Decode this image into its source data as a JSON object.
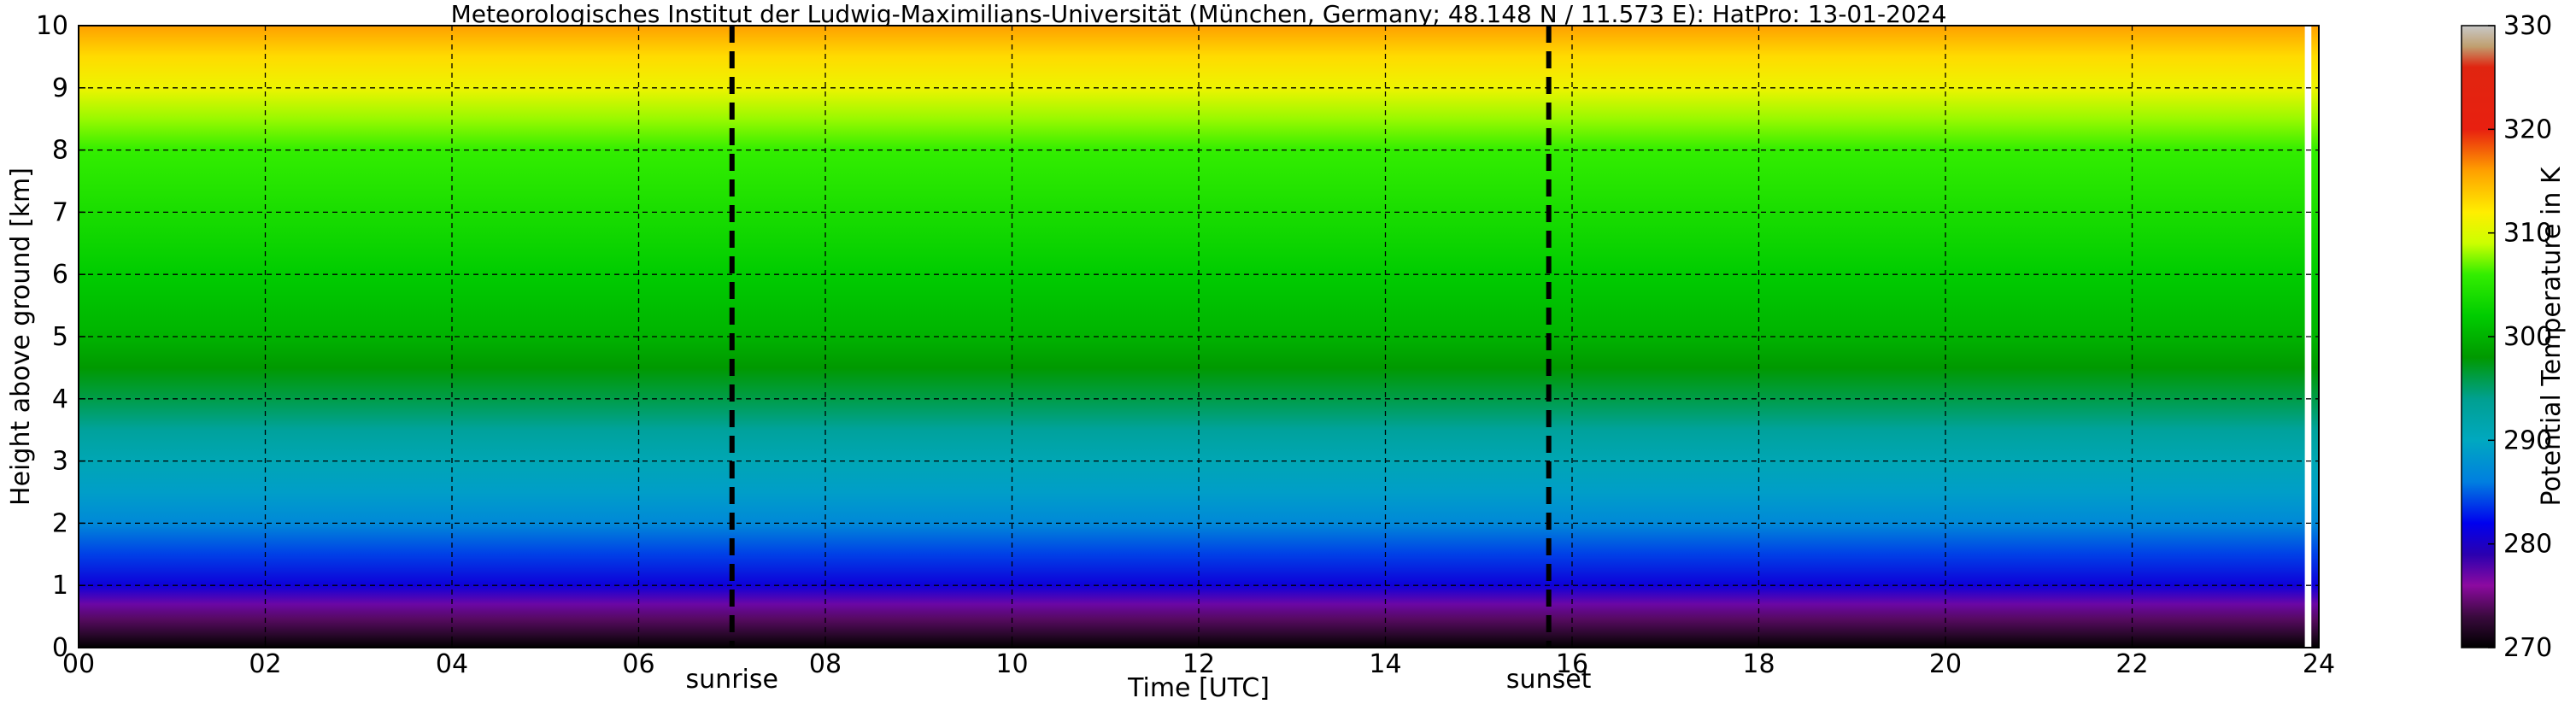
{
  "chart_data": {
    "type": "heatmap",
    "title": "Meteorologisches Institut der Ludwig-Maximilians-Universität (München, Germany; 48.148 N / 11.573 E):    HatPro: 13-01-2024",
    "xlabel": "Time [UTC]",
    "ylabel": "Height above ground [km]",
    "colorbar_label": "Potential Temperature in K",
    "x_ticks": [
      "00",
      "02",
      "04",
      "06",
      "08",
      "10",
      "12",
      "14",
      "16",
      "18",
      "20",
      "22",
      "24"
    ],
    "x_tick_values": [
      0,
      2,
      4,
      6,
      8,
      10,
      12,
      14,
      16,
      18,
      20,
      22,
      24
    ],
    "y_ticks": [
      "0",
      "1",
      "2",
      "3",
      "4",
      "5",
      "6",
      "7",
      "8",
      "9",
      "10"
    ],
    "y_tick_values": [
      0,
      1,
      2,
      3,
      4,
      5,
      6,
      7,
      8,
      9,
      10
    ],
    "xlim": [
      0,
      24
    ],
    "ylim": [
      0,
      10
    ],
    "colorbar_ticks": [
      "270",
      "280",
      "290",
      "300",
      "310",
      "320",
      "330"
    ],
    "colorbar_tick_values": [
      270,
      280,
      290,
      300,
      310,
      320,
      330
    ],
    "clim": [
      270,
      330
    ],
    "grid": true,
    "colormap": [
      {
        "value": 270,
        "color": "#000000"
      },
      {
        "value": 273,
        "color": "#3a0a3e"
      },
      {
        "value": 276,
        "color": "#8c0aa0"
      },
      {
        "value": 279,
        "color": "#2a00b0"
      },
      {
        "value": 282,
        "color": "#0000ee"
      },
      {
        "value": 286,
        "color": "#007fe0"
      },
      {
        "value": 290,
        "color": "#00a8c0"
      },
      {
        "value": 294,
        "color": "#00a090"
      },
      {
        "value": 298,
        "color": "#009900"
      },
      {
        "value": 302,
        "color": "#00cc00"
      },
      {
        "value": 306,
        "color": "#33ee00"
      },
      {
        "value": 309,
        "color": "#ccff00"
      },
      {
        "value": 312,
        "color": "#ffee00"
      },
      {
        "value": 316,
        "color": "#ffa000"
      },
      {
        "value": 320,
        "color": "#e82010"
      },
      {
        "value": 326,
        "color": "#e02510"
      },
      {
        "value": 328,
        "color": "#c0a070"
      },
      {
        "value": 330,
        "color": "#c8c8c8"
      }
    ],
    "profile_height_km": [
      0,
      0.2,
      0.45,
      0.7,
      1.0,
      1.5,
      2.0,
      2.5,
      3.0,
      3.5,
      4.0,
      4.5,
      5.0,
      5.5,
      6.0,
      7.0,
      8.0,
      8.5,
      9.0,
      9.5,
      10.0
    ],
    "profile_theta_k": [
      270,
      272,
      274,
      277,
      281,
      284,
      287,
      289,
      291,
      293,
      296,
      298,
      300,
      301,
      302,
      304,
      306,
      308,
      311,
      313,
      316
    ],
    "vertical_markers": [
      {
        "label": "sunrise",
        "x": 7.0
      },
      {
        "label": "sunset",
        "x": 15.75
      }
    ]
  }
}
